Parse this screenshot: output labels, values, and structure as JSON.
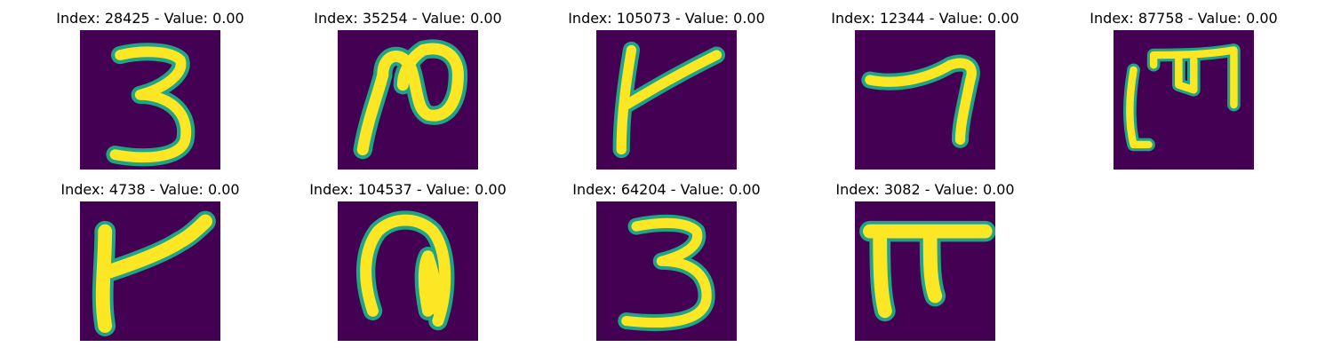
{
  "figure": {
    "panels": [
      {
        "index_label": "Index",
        "index": "28425",
        "value_label": "Value",
        "value": "0.00",
        "image": "handwritten-glyph-3",
        "title": "Index: 28425 - Value: 0.00"
      },
      {
        "index_label": "Index",
        "index": "35254",
        "value_label": "Value",
        "value": "0.00",
        "image": "handwritten-glyph-looped-n",
        "title": "Index: 35254 - Value: 0.00"
      },
      {
        "index_label": "Index",
        "index": "105073",
        "value_label": "Value",
        "value": "0.00",
        "image": "handwritten-glyph-k-stroke",
        "title": "Index: 105073 - Value: 0.00"
      },
      {
        "index_label": "Index",
        "index": "12344",
        "value_label": "Value",
        "value": "0.00",
        "image": "handwritten-glyph-7",
        "title": "Index: 12344 - Value: 0.00"
      },
      {
        "index_label": "Index",
        "index": "87758",
        "value_label": "Value",
        "value": "0.00",
        "image": "handwritten-glyph-m-bracket",
        "title": "Index: 87758 - Value: 0.00"
      },
      {
        "index_label": "Index",
        "index": "4738",
        "value_label": "Value",
        "value": "0.00",
        "image": "handwritten-glyph-k-stroke",
        "title": "Index: 4738 - Value: 0.00"
      },
      {
        "index_label": "Index",
        "index": "104537",
        "value_label": "Value",
        "value": "0.00",
        "image": "handwritten-glyph-hook",
        "title": "Index: 104537 - Value: 0.00"
      },
      {
        "index_label": "Index",
        "index": "64204",
        "value_label": "Value",
        "value": "0.00",
        "image": "handwritten-glyph-3",
        "title": "Index: 64204 - Value: 0.00"
      },
      {
        "index_label": "Index",
        "index": "3082",
        "value_label": "Value",
        "value": "0.00",
        "image": "handwritten-glyph-pi",
        "title": "Index: 3082 - Value: 0.00"
      }
    ],
    "colors": {
      "background": "#440154",
      "edge": "#20a486",
      "stroke": "#fde725"
    }
  }
}
